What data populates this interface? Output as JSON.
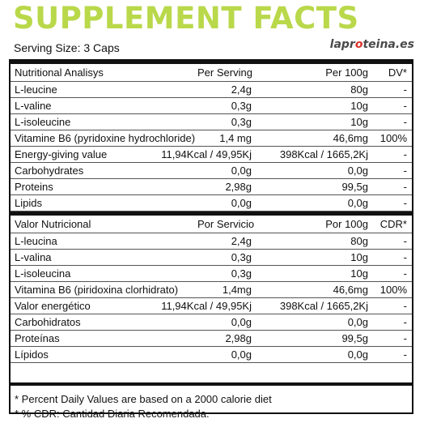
{
  "header": {
    "title": "SUPPLEMENT FACTS",
    "serving": "Serving Size: 3 Caps",
    "logo_part1": "lapr",
    "logo_accent": "o",
    "logo_part2": "teina.es"
  },
  "english": {
    "head": [
      "Nutritional Analisys",
      "Per Serving",
      "Per 100g",
      "DV*"
    ],
    "rows": [
      [
        "L-leucine",
        "2,4g",
        "80g",
        "-"
      ],
      [
        "L-valine",
        "0,3g",
        "10g",
        "-"
      ],
      [
        "L-isoleucine",
        "0,3g",
        "10g",
        "-"
      ],
      [
        "Vitamine B6 (pyridoxine hydrochloride)",
        "1,4 mg",
        "46,6mg",
        "100%"
      ],
      [
        "Energy-giving value",
        "11,94Kcal / 49,95Kj",
        "398Kcal / 1665,2Kj",
        "-"
      ],
      [
        "Carbohydrates",
        "0,0g",
        "0,0g",
        "-"
      ],
      [
        "Proteins",
        "2,98g",
        "99,5g",
        "-"
      ],
      [
        "Lipids",
        "0,0g",
        "0,0g",
        "-"
      ]
    ]
  },
  "spanish": {
    "head": [
      "Valor Nutricional",
      "Por Servicio",
      "Por 100g",
      "CDR*"
    ],
    "rows": [
      [
        "L-leucina",
        "2,4g",
        "80g",
        "-"
      ],
      [
        "L-valina",
        "0,3g",
        "10g",
        "-"
      ],
      [
        "L-isoleucina",
        "0,3g",
        "10g",
        "-"
      ],
      [
        "Vitamina B6 (piridoxina clorhidrato)",
        "1,4mg",
        "46,6mg",
        "100%"
      ],
      [
        "Valor energético",
        "11,94Kcal / 49,95Kj",
        "398Kcal / 1665,2Kj",
        "-"
      ],
      [
        "Carbohidratos",
        "0,0g",
        "0,0g",
        "-"
      ],
      [
        "Proteínas",
        "2,98g",
        "99,5g",
        "-"
      ],
      [
        "Lípidos",
        "0,0g",
        "0,0g",
        "-"
      ]
    ]
  },
  "footer": {
    "note1": "* Percent Daily Values are based on a 2000 calorie diet",
    "note2": "* % CDR: Cantidad Diaria Recomendada."
  }
}
